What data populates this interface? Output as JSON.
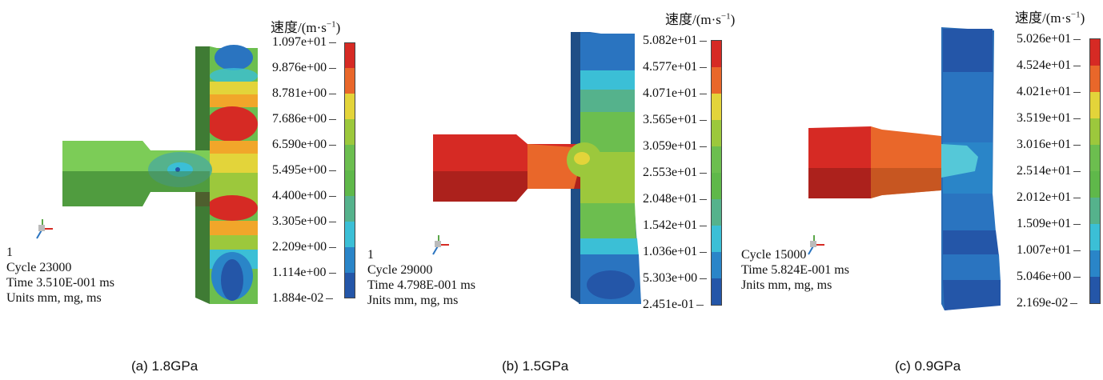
{
  "panels": [
    {
      "legend_title": "速度/(m·s",
      "legend_exp": "−1",
      "legend_suffix": ")",
      "ticks": [
        "1.097e+01",
        "9.876e+00",
        "8.781e+00",
        "7.686e+00",
        "6.590e+00",
        "5.495e+00",
        "4.400e+00",
        "3.305e+00",
        "2.209e+00",
        "1.114e+00",
        "1.884e-02"
      ],
      "info": {
        "line1": "1",
        "cycle": "Cycle 23000",
        "time": "Time 3.510E-001 ms",
        "units": "Units mm, mg, ms"
      },
      "caption": "(a) 1.8GPa"
    },
    {
      "legend_title": "速度/(m·s",
      "legend_exp": "−1",
      "legend_suffix": ")",
      "ticks": [
        "5.082e+01",
        "4.577e+01",
        "4.071e+01",
        "3.565e+01",
        "3.059e+01",
        "2.553e+01",
        "2.048e+01",
        "1.542e+01",
        "1.036e+01",
        "5.303e+00",
        "2.451e-01"
      ],
      "info": {
        "line1": "1",
        "cycle": "Cycle 29000",
        "time": "Time 4.798E-001 ms",
        "units": "Jnits mm, mg, ms"
      },
      "caption": "(b) 1.5GPa"
    },
    {
      "legend_title": "速度/(m·s",
      "legend_exp": "−1",
      "legend_suffix": ")",
      "ticks": [
        "5.026e+01",
        "4.524e+01",
        "4.021e+01",
        "3.519e+01",
        "3.016e+01",
        "2.514e+01",
        "2.012e+01",
        "1.509e+01",
        "1.007e+01",
        "5.046e+00",
        "2.169e-02"
      ],
      "info": {
        "line1": "",
        "cycle": "Cycle 15000",
        "time": "Time 5.824E-001 ms",
        "units": "Jnits mm, mg, ms"
      },
      "caption": "(c) 0.9GPa"
    }
  ],
  "colorbar_colors": [
    "#d62a24",
    "#e9672a",
    "#f1a62a",
    "#e3d43a",
    "#9cc83c",
    "#5fb84a",
    "#55b28c",
    "#3bbfd6",
    "#2a85c8",
    "#2456a8"
  ]
}
